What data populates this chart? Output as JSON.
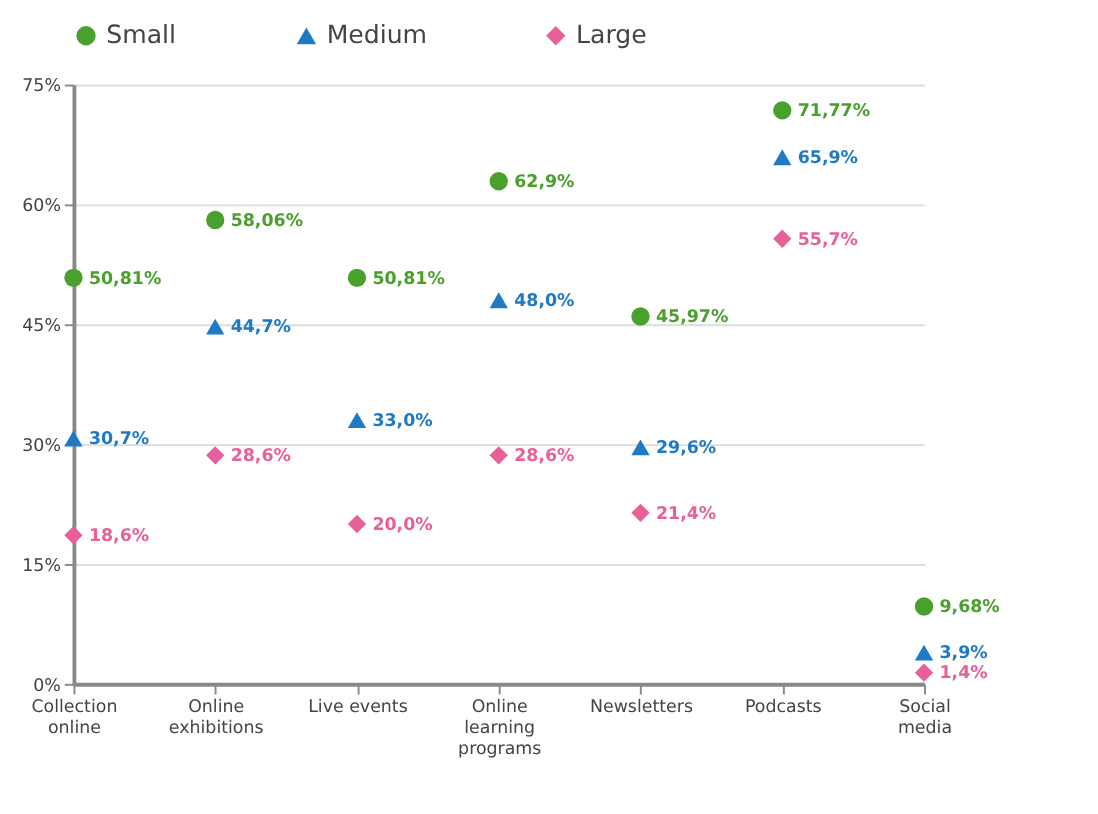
{
  "chart_data": {
    "type": "scatter",
    "categories": [
      "Collection online",
      "Online exhibitions",
      "Live events",
      "Online learning programs",
      "Newsletters",
      "Podcasts",
      "Social media"
    ],
    "series": [
      {
        "name": "Small",
        "color": "#4aa02c",
        "marker": "circle",
        "values": [
          50.81,
          58.06,
          50.81,
          62.9,
          45.97,
          71.77,
          9.68
        ],
        "value_labels": [
          "50,81%",
          "58,06%",
          "50,81%",
          "62,9%",
          "45,97%",
          "71,77%",
          "9,68%"
        ]
      },
      {
        "name": "Medium",
        "color": "#1f7ac4",
        "marker": "triangle",
        "values": [
          30.7,
          44.7,
          33.0,
          48.0,
          29.6,
          65.9,
          3.9
        ],
        "value_labels": [
          "30,7%",
          "44,7%",
          "33,0%",
          "48,0%",
          "29,6%",
          "65,9%",
          "3,9%"
        ]
      },
      {
        "name": "Large",
        "color": "#e8609a",
        "marker": "diamond",
        "values": [
          18.6,
          28.6,
          20.0,
          28.6,
          21.4,
          55.7,
          1.4
        ],
        "value_labels": [
          "18,6%",
          "28,6%",
          "20,0%",
          "28,6%",
          "21,4%",
          "55,7%",
          "1,4%"
        ]
      }
    ],
    "ylim": [
      0,
      75
    ],
    "yticks": [
      {
        "value": 0,
        "label": "0%"
      },
      {
        "value": 15,
        "label": "15%"
      },
      {
        "value": 30,
        "label": "30%"
      },
      {
        "value": 45,
        "label": "45%"
      },
      {
        "value": 60,
        "label": "60%"
      },
      {
        "value": 75,
        "label": "75%"
      }
    ],
    "grid": "y",
    "legend": "top"
  }
}
